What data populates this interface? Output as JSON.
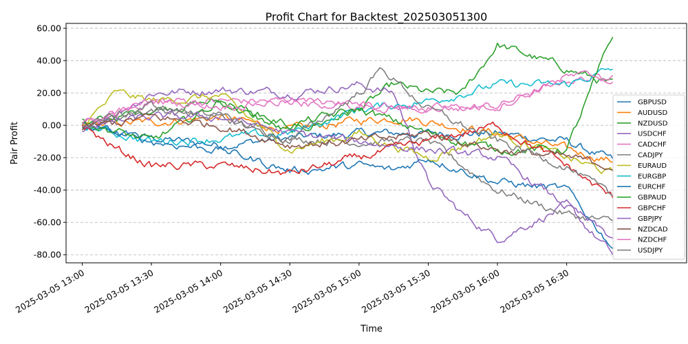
{
  "chart_data": {
    "type": "line",
    "title": "Profit Chart for Backtest_202503051300",
    "xlabel": "Time",
    "ylabel": "Pair Profit",
    "x_ticks": [
      "2025-03-05 13:00",
      "2025-03-05 13:30",
      "2025-03-05 14:00",
      "2025-03-05 14:30",
      "2025-03-05 15:00",
      "2025-03-05 15:30",
      "2025-03-05 16:00",
      "2025-03-05 16:30"
    ],
    "y_ticks": [
      "60.00",
      "40.00",
      "20.00",
      "0.00",
      "-20.00",
      "-40.00",
      "-60.00",
      "-80.00"
    ],
    "xlim": [
      "12:53",
      "17:22"
    ],
    "ylim": [
      -85,
      63
    ],
    "grid": "horizontal dashed",
    "legend_position": "right",
    "series": [
      {
        "name": "GBPUSD",
        "color": "#1f77b4",
        "x": [
          "13:00",
          "13:30",
          "14:00",
          "14:30",
          "15:00",
          "15:30",
          "16:00",
          "16:30",
          "16:50"
        ],
        "values": [
          -2,
          -8,
          -12,
          -8,
          -5,
          -5,
          -5,
          -10,
          -22
        ]
      },
      {
        "name": "AUDUSD",
        "color": "#ff7f0e",
        "x": [
          "13:00",
          "13:30",
          "14:00",
          "14:30",
          "15:00",
          "15:20",
          "15:40",
          "16:00",
          "16:30",
          "16:50"
        ],
        "values": [
          0,
          2,
          5,
          -3,
          3,
          5,
          0,
          -5,
          -15,
          -22
        ]
      },
      {
        "name": "NZDUSD",
        "color": "#2ca02c",
        "x": [
          "13:00",
          "13:15",
          "13:30",
          "14:00",
          "14:30",
          "15:00",
          "15:15",
          "15:30",
          "15:45",
          "16:00",
          "16:30",
          "16:50"
        ],
        "values": [
          0,
          5,
          10,
          15,
          -5,
          10,
          25,
          20,
          20,
          50,
          35,
          25
        ]
      },
      {
        "name": "USDCHF",
        "color": "#9467bd",
        "x": [
          "13:00",
          "13:30",
          "14:00",
          "14:30",
          "15:00",
          "15:15",
          "15:30",
          "15:45",
          "16:00",
          "16:30",
          "16:50"
        ],
        "values": [
          -5,
          20,
          22,
          20,
          25,
          20,
          -35,
          -55,
          -70,
          -50,
          -80
        ]
      },
      {
        "name": "CADCHF",
        "color": "#e377c2",
        "x": [
          "13:00",
          "13:30",
          "14:00",
          "14:30",
          "15:00",
          "15:30",
          "16:00",
          "16:30",
          "16:50"
        ],
        "values": [
          0,
          15,
          15,
          15,
          12,
          10,
          12,
          28,
          30
        ]
      },
      {
        "name": "CADJPY",
        "color": "#7f7f7f",
        "x": [
          "13:00",
          "13:30",
          "14:00",
          "14:30",
          "15:00",
          "15:30",
          "16:00",
          "16:30",
          "16:50"
        ],
        "values": [
          0,
          10,
          5,
          -8,
          -10,
          -10,
          -40,
          -55,
          -60
        ]
      },
      {
        "name": "EURAUD",
        "color": "#bcbd22",
        "x": [
          "13:00",
          "13:15",
          "13:30",
          "14:00",
          "14:30",
          "15:00",
          "15:30",
          "16:00",
          "16:30",
          "16:50"
        ],
        "values": [
          0,
          20,
          15,
          18,
          -15,
          -5,
          -20,
          -5,
          -20,
          -30
        ]
      },
      {
        "name": "EURGBP",
        "color": "#17becf",
        "x": [
          "13:00",
          "13:30",
          "14:00",
          "14:30",
          "15:00",
          "15:30",
          "16:00",
          "16:30",
          "16:50"
        ],
        "values": [
          0,
          -10,
          -8,
          -5,
          10,
          15,
          25,
          25,
          35
        ]
      },
      {
        "name": "EURCHF",
        "color": "#1f77b4",
        "x": [
          "13:00",
          "13:30",
          "14:00",
          "14:30",
          "15:00",
          "15:15",
          "15:30",
          "16:00",
          "16:30",
          "16:50"
        ],
        "values": [
          0,
          -10,
          -15,
          -28,
          -25,
          -28,
          -20,
          -35,
          -40,
          -75
        ]
      },
      {
        "name": "GBPAUD",
        "color": "#2ca02c",
        "x": [
          "13:00",
          "13:30",
          "14:00",
          "14:30",
          "15:00",
          "15:30",
          "16:00",
          "16:30",
          "16:50"
        ],
        "values": [
          2,
          -10,
          15,
          0,
          10,
          -5,
          -15,
          -15,
          55
        ]
      },
      {
        "name": "GBPCHF",
        "color": "#d62728",
        "x": [
          "13:00",
          "13:15",
          "13:30",
          "14:00",
          "14:30",
          "15:00",
          "15:30",
          "16:00",
          "16:30",
          "16:50"
        ],
        "values": [
          0,
          -15,
          -25,
          -25,
          -30,
          -20,
          -10,
          0,
          -25,
          -45
        ]
      },
      {
        "name": "GBPJPY",
        "color": "#9467bd",
        "x": [
          "13:00",
          "13:30",
          "14:00",
          "14:30",
          "15:00",
          "15:30",
          "16:00",
          "16:30",
          "16:50"
        ],
        "values": [
          0,
          5,
          5,
          -5,
          -10,
          -15,
          -20,
          -50,
          -70
        ]
      },
      {
        "name": "NZDCAD",
        "color": "#8c564b",
        "x": [
          "13:00",
          "13:30",
          "14:00",
          "14:30",
          "15:00",
          "15:30",
          "16:00",
          "16:30",
          "16:50"
        ],
        "values": [
          -2,
          5,
          0,
          -12,
          -10,
          -5,
          -15,
          -20,
          -25
        ]
      },
      {
        "name": "NZDCHF",
        "color": "#e377c2",
        "x": [
          "13:00",
          "13:30",
          "14:00",
          "14:30",
          "15:00",
          "15:30",
          "16:00",
          "16:30",
          "16:50"
        ],
        "values": [
          0,
          15,
          12,
          15,
          12,
          10,
          12,
          30,
          30
        ]
      },
      {
        "name": "USDJPY",
        "color": "#7f7f7f",
        "x": [
          "13:00",
          "13:30",
          "14:00",
          "14:30",
          "15:00",
          "15:10",
          "15:30",
          "16:00",
          "16:30",
          "16:50"
        ],
        "values": [
          0,
          12,
          5,
          -10,
          20,
          35,
          10,
          -10,
          -25,
          -45
        ]
      }
    ]
  }
}
